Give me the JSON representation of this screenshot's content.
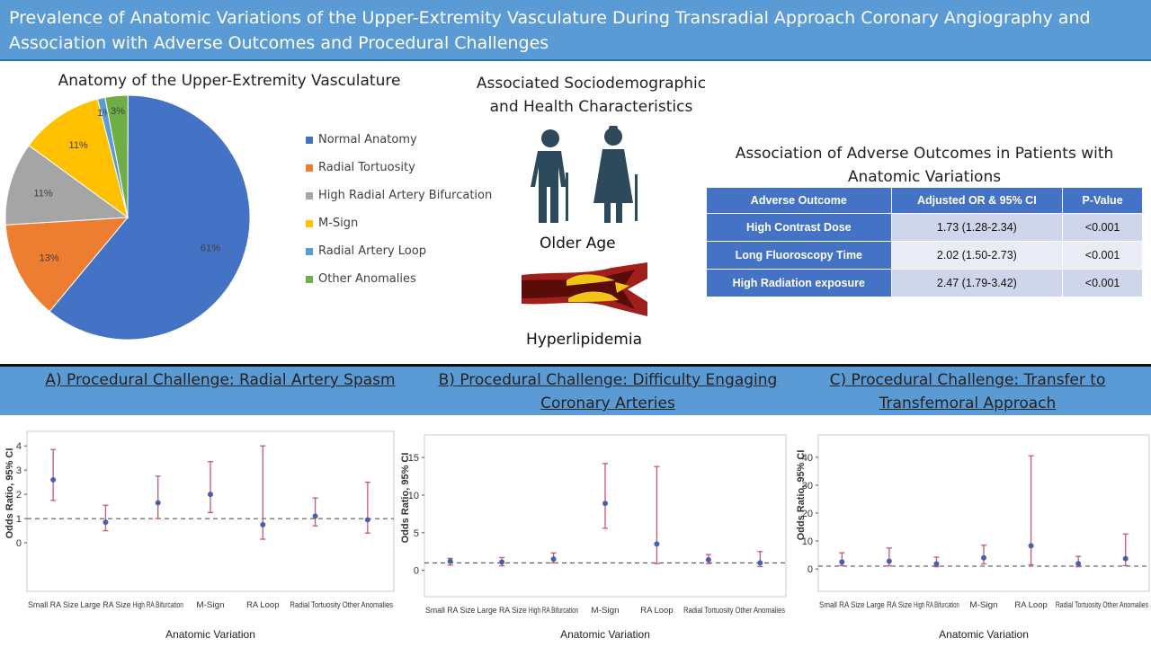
{
  "header": {
    "line1": "Prevalence of Anatomic Variations of the Upper-Extremity Vasculature During Transradial Approach Coronary Angiography and",
    "line2": "Association with Adverse Outcomes and Procedural Challenges"
  },
  "pie_title": "Anatomy of the Upper-Extremity  Vasculature",
  "socio": {
    "title_line1": "Associated Sociodemographic",
    "title_line2": "and Health Characteristics",
    "older_age": "Older Age",
    "hyperlipidemia": "Hyperlipidemia"
  },
  "table_title_line1": "Association of Adverse Outcomes in Patients with",
  "table_title_line2": "Anatomic Variations",
  "table": {
    "headers": [
      "Adverse Outcome",
      "Adjusted OR & 95% CI",
      "P-Value"
    ],
    "rows": [
      [
        "High Contrast Dose",
        "1.73 (1.28-2.34)",
        "<0.001"
      ],
      [
        "Long Fluoroscopy Time",
        "2.02 (1.50-2.73)",
        "<0.001"
      ],
      [
        "High Radiation exposure",
        "2.47 (1.79-3.42)",
        "<0.001"
      ]
    ]
  },
  "panel_titles": {
    "a": "A) Procedural Challenge: Radial Artery Spasm",
    "b1": "B) Procedural Challenge: Difficulty Engaging",
    "b2": "Coronary Arteries",
    "c1": "C) Procedural Challenge: Transfer to",
    "c2": "Transfemoral Approach"
  },
  "colors": {
    "normal": "#4472c4",
    "tortuosity": "#ed7d31",
    "bifurcation": "#a5a5a5",
    "msign": "#ffc000",
    "loop": "#5b9bd5",
    "other": "#70ad47",
    "errorbar": "#c9567a",
    "point": "#4a5fb0"
  },
  "chart_data": [
    {
      "type": "pie",
      "title": "Anatomy of the Upper-Extremity  Vasculature",
      "legend_position": "right",
      "slices": [
        {
          "label": "Normal Anatomy",
          "value": 61,
          "text": "61%"
        },
        {
          "label": "Radial Tortuosity",
          "value": 13,
          "text": "13%"
        },
        {
          "label": "High Radial Artery Bifurcation",
          "value": 11,
          "text": "11%"
        },
        {
          "label": "M-Sign",
          "value": 11,
          "text": "11%"
        },
        {
          "label": "Radial Artery Loop",
          "value": 1,
          "text": "1%"
        },
        {
          "label": "Other Anomalies",
          "value": 3,
          "text": "3%"
        }
      ]
    },
    {
      "type": "scatter",
      "title": "A) Procedural Challenge: Radial Artery Spasm",
      "xlabel": "Anatomic Variation",
      "ylabel": "Odds Ratio, 95% CI",
      "ylim": [
        -2,
        4.6
      ],
      "yticks": [
        0,
        1,
        2,
        3,
        4
      ],
      "reference_line": 1,
      "categories": [
        "Small RA Size",
        "Large RA Size",
        "High RA Bifurcation",
        "M-Sign",
        "RA Loop",
        "Radial Tortuosity",
        "Other Anomalies"
      ],
      "points": [
        {
          "or": 2.6,
          "lo": 1.75,
          "hi": 3.85
        },
        {
          "or": 0.85,
          "lo": 0.5,
          "hi": 1.55
        },
        {
          "or": 1.65,
          "lo": 1.0,
          "hi": 2.75
        },
        {
          "or": 2.0,
          "lo": 1.25,
          "hi": 3.35
        },
        {
          "or": 0.75,
          "lo": 0.15,
          "hi": 4.0
        },
        {
          "or": 1.1,
          "lo": 0.7,
          "hi": 1.85
        },
        {
          "or": 0.95,
          "lo": 0.4,
          "hi": 2.5
        }
      ]
    },
    {
      "type": "scatter",
      "title": "B) Procedural Challenge: Difficulty Engaging Coronary Arteries",
      "xlabel": "Anatomic Variation",
      "ylabel": "Odds Ratio, 95% CI",
      "ylim": [
        -3.5,
        18
      ],
      "yticks": [
        0,
        5,
        10,
        15
      ],
      "reference_line": 1,
      "categories": [
        "Small RA Size",
        "Large RA Size",
        "High RA Bifurcation",
        "M-Sign",
        "RA Loop",
        "Radial Tortuosity",
        "Other Anomalies"
      ],
      "points": [
        {
          "or": 1.2,
          "lo": 0.7,
          "hi": 1.6
        },
        {
          "or": 1.1,
          "lo": 0.6,
          "hi": 1.7
        },
        {
          "or": 1.5,
          "lo": 1.0,
          "hi": 2.3
        },
        {
          "or": 8.9,
          "lo": 5.6,
          "hi": 14.2
        },
        {
          "or": 3.5,
          "lo": 0.9,
          "hi": 13.8
        },
        {
          "or": 1.4,
          "lo": 0.9,
          "hi": 2.1
        },
        {
          "or": 1.0,
          "lo": 0.5,
          "hi": 2.5
        }
      ]
    },
    {
      "type": "scatter",
      "title": "C) Procedural Challenge: Transfer to Transfemoral Approach",
      "xlabel": "Anatomic Variation",
      "ylabel": "Odds Ratio, 95% CI",
      "ylim": [
        -8,
        48
      ],
      "yticks": [
        0,
        10,
        20,
        30,
        40
      ],
      "reference_line": 1,
      "categories": [
        "Small RA Size",
        "Large RA Size",
        "High RA Bifurcation",
        "M-Sign",
        "RA Loop",
        "Radial Tortuosity",
        "Other Anomalies"
      ],
      "points": [
        {
          "or": 2.5,
          "lo": 1.2,
          "hi": 5.8
        },
        {
          "or": 2.8,
          "lo": 1.1,
          "hi": 7.5
        },
        {
          "or": 1.8,
          "lo": 0.8,
          "hi": 4.2
        },
        {
          "or": 4.0,
          "lo": 1.8,
          "hi": 8.5
        },
        {
          "or": 8.3,
          "lo": 1.5,
          "hi": 40.5
        },
        {
          "or": 1.9,
          "lo": 0.8,
          "hi": 4.5
        },
        {
          "or": 3.7,
          "lo": 1.2,
          "hi": 12.5
        }
      ]
    }
  ]
}
